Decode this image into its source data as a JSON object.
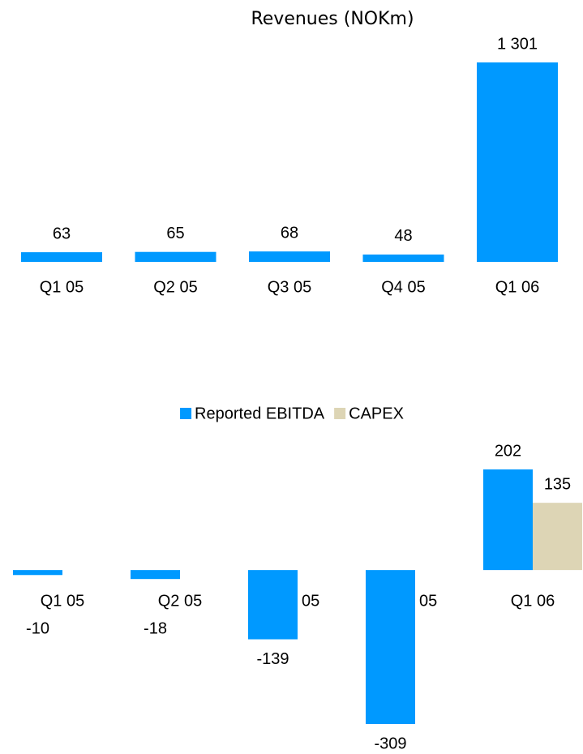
{
  "chart_data": [
    {
      "type": "bar",
      "title": "Revenues (NOKm)",
      "categories": [
        "Q1 05",
        "Q2 05",
        "Q3 05",
        "Q4 05",
        "Q1 06"
      ],
      "values": [
        63,
        65,
        68,
        48,
        1301
      ],
      "value_labels": [
        "63",
        "65",
        "68",
        "48",
        "1 301"
      ],
      "color": "#0099ff"
    },
    {
      "type": "grouped-bar",
      "categories": [
        "Q1 05",
        "Q2 05",
        "Q3 05",
        "Q4 05",
        "Q1 06"
      ],
      "series": [
        {
          "name": "Reported EBITDA",
          "color": "#0099ff",
          "values": [
            -10,
            -18,
            -139,
            -309,
            202
          ]
        },
        {
          "name": "CAPEX",
          "color": "#ddd5b5",
          "values": [
            null,
            null,
            null,
            null,
            135
          ]
        }
      ],
      "legend": "top"
    }
  ]
}
